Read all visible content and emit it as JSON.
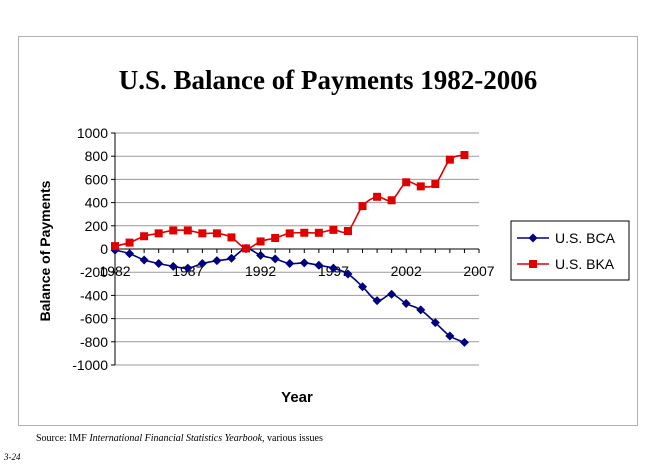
{
  "chart_data": {
    "type": "line",
    "title": "U.S. Balance of Payments 1982-2006",
    "xlabel": "Year",
    "ylabel": "Balance of Payments",
    "xlim": [
      1982,
      2007
    ],
    "ylim": [
      -1000,
      1000
    ],
    "x_ticks": [
      1982,
      1987,
      1992,
      1997,
      2002,
      2007
    ],
    "y_ticks": [
      1000,
      800,
      600,
      400,
      200,
      0,
      -200,
      -400,
      -600,
      -800,
      -1000
    ],
    "grid": "horizontal",
    "legend_position": "right",
    "x": [
      1982,
      1983,
      1984,
      1985,
      1986,
      1987,
      1988,
      1989,
      1990,
      1991,
      1992,
      1993,
      1994,
      1995,
      1996,
      1997,
      1998,
      1999,
      2000,
      2001,
      2002,
      2003,
      2004,
      2005,
      2006
    ],
    "series": [
      {
        "name": "U.S. BCA",
        "color": "#000080",
        "marker": "diamond",
        "values": [
          -10,
          -40,
          -95,
          -125,
          -150,
          -165,
          -125,
          -100,
          -80,
          5,
          -55,
          -85,
          -125,
          -120,
          -140,
          -165,
          -215,
          -325,
          -445,
          -390,
          -470,
          -525,
          -635,
          -750,
          -805
        ]
      },
      {
        "name": "U.S. BKA",
        "color": "#e00000",
        "marker": "square",
        "values": [
          25,
          55,
          110,
          135,
          160,
          160,
          135,
          135,
          100,
          5,
          65,
          95,
          135,
          140,
          140,
          165,
          155,
          370,
          450,
          420,
          575,
          540,
          560,
          770,
          810
        ]
      }
    ]
  },
  "footer": {
    "source_prefix": "Source: IMF ",
    "source_title": "International Financial Statistics Yearbook,",
    "source_suffix": " various issues",
    "page_number": "3-24"
  }
}
